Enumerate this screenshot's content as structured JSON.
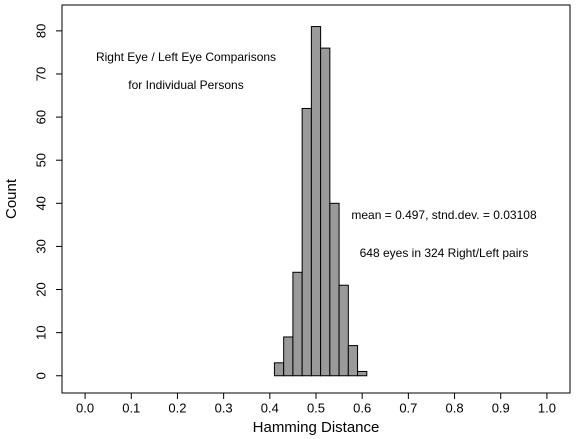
{
  "chart_data": {
    "type": "histogram",
    "xlabel": "Hamming Distance",
    "ylabel": "Count",
    "annotations": [
      "Right Eye / Left Eye Comparisons",
      "for Individual Persons",
      "mean = 0.497,  stnd.dev. = 0.03108",
      "648 eyes in 324 Right/Left pairs"
    ],
    "bins": [
      0.41,
      0.43,
      0.45,
      0.47,
      0.49,
      0.51,
      0.53,
      0.55,
      0.57,
      0.59,
      0.61
    ],
    "values": [
      3,
      9,
      24,
      62,
      81,
      76,
      40,
      21,
      7,
      1
    ],
    "color": "#9a9a9a",
    "xlim": [
      -0.05,
      1.05
    ],
    "xticks": [
      {
        "value": 0,
        "label": "0.0"
      },
      0.1,
      0.2,
      0.3,
      0.4,
      0.5,
      0.6,
      0.7,
      0.8,
      0.9,
      {
        "value": 1,
        "label": "1.0"
      }
    ],
    "ylim": [
      -4,
      86
    ],
    "yticks": [
      0,
      10,
      20,
      30,
      40,
      50,
      60,
      70,
      80
    ]
  }
}
